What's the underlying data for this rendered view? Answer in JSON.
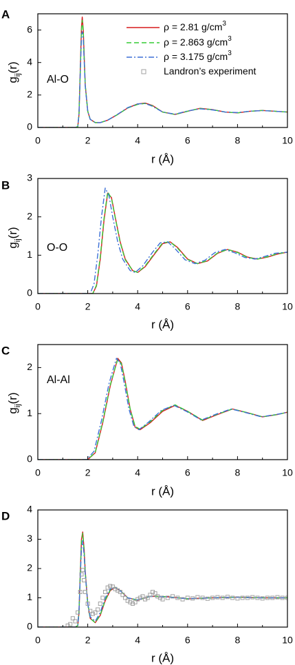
{
  "colors": {
    "s281": "#d7191c",
    "s2863": "#33cc33",
    "s3175": "#3b6fd6",
    "exp": "#a0a0a0"
  },
  "legend": {
    "entries": [
      {
        "pre": "ρ = 2.81 g/cm",
        "sup": "3"
      },
      {
        "pre": "ρ = 2.863 g/cm",
        "sup": "3"
      },
      {
        "pre": "ρ = 3.175 g/cm",
        "sup": "3"
      },
      {
        "pre": "Landron’s experiment",
        "sup": ""
      }
    ]
  },
  "chart_data": [
    {
      "panel": "A",
      "label": "Al-O",
      "type": "line",
      "xlabel": "r (Å)",
      "ylabel_main": "g",
      "ylabel_sub": "ij",
      "ylabel_tail": "(r)",
      "xlim": [
        0,
        10
      ],
      "ylim": [
        0,
        7
      ],
      "xticks": [
        0,
        2,
        4,
        6,
        8,
        10
      ],
      "yticks": [
        0,
        2,
        4,
        6
      ],
      "series": [
        {
          "name": "ρ = 2.81 g/cm³",
          "style": "solid",
          "x": [
            0,
            1.5,
            1.6,
            1.65,
            1.7,
            1.75,
            1.78,
            1.82,
            1.86,
            1.9,
            2.0,
            2.1,
            2.3,
            2.5,
            2.8,
            3.2,
            3.6,
            4.0,
            4.3,
            4.6,
            5.0,
            5.5,
            6.0,
            6.5,
            7.0,
            7.5,
            8.0,
            8.5,
            9.0,
            9.5,
            10
          ],
          "y": [
            0,
            0,
            0.05,
            0.8,
            3.5,
            6.2,
            6.8,
            6.0,
            4.3,
            2.6,
            1.0,
            0.5,
            0.3,
            0.3,
            0.45,
            0.8,
            1.2,
            1.45,
            1.5,
            1.35,
            0.95,
            0.8,
            1.0,
            1.18,
            1.1,
            0.95,
            0.9,
            1.0,
            1.05,
            1.0,
            0.95
          ]
        },
        {
          "name": "ρ = 2.863 g/cm³",
          "style": "dashed",
          "x": [
            0,
            1.5,
            1.6,
            1.65,
            1.7,
            1.75,
            1.78,
            1.82,
            1.86,
            1.9,
            2.0,
            2.1,
            2.3,
            2.5,
            2.8,
            3.2,
            3.6,
            4.0,
            4.3,
            4.6,
            5.0,
            5.5,
            6.0,
            6.5,
            7.0,
            7.5,
            8.0,
            8.5,
            9.0,
            9.5,
            10
          ],
          "y": [
            0,
            0,
            0.05,
            0.8,
            3.4,
            6.0,
            6.6,
            5.9,
            4.2,
            2.6,
            1.0,
            0.5,
            0.3,
            0.3,
            0.45,
            0.8,
            1.2,
            1.42,
            1.48,
            1.33,
            0.95,
            0.8,
            1.0,
            1.17,
            1.1,
            0.95,
            0.9,
            1.0,
            1.05,
            1.0,
            0.95
          ]
        },
        {
          "name": "ρ = 3.175 g/cm³",
          "style": "dashdot",
          "x": [
            0,
            1.5,
            1.6,
            1.65,
            1.7,
            1.75,
            1.78,
            1.82,
            1.86,
            1.9,
            2.0,
            2.1,
            2.3,
            2.5,
            2.8,
            3.2,
            3.6,
            4.0,
            4.3,
            4.6,
            5.0,
            5.5,
            6.0,
            6.5,
            7.0,
            7.5,
            8.0,
            8.5,
            9.0,
            9.5,
            10
          ],
          "y": [
            0,
            0,
            0.05,
            0.9,
            3.3,
            5.6,
            5.9,
            5.4,
            4.0,
            2.5,
            1.0,
            0.5,
            0.3,
            0.3,
            0.45,
            0.82,
            1.22,
            1.45,
            1.48,
            1.3,
            0.95,
            0.82,
            1.02,
            1.15,
            1.08,
            0.95,
            0.92,
            1.0,
            1.04,
            1.0,
            0.95
          ]
        }
      ]
    },
    {
      "panel": "B",
      "label": "O-O",
      "type": "line",
      "xlabel": "r (Å)",
      "ylabel_main": "g",
      "ylabel_sub": "ij",
      "ylabel_tail": "(r)",
      "xlim": [
        0,
        10
      ],
      "ylim": [
        0,
        3
      ],
      "xticks": [
        0,
        2,
        4,
        6,
        8,
        10
      ],
      "yticks": [
        0,
        1,
        2,
        3
      ],
      "series": [
        {
          "name": "ρ = 2.81 g/cm³",
          "style": "solid",
          "x": [
            0,
            2.2,
            2.35,
            2.5,
            2.65,
            2.8,
            2.95,
            3.1,
            3.3,
            3.5,
            3.8,
            4.0,
            4.3,
            4.7,
            5.0,
            5.3,
            5.6,
            6.0,
            6.4,
            6.8,
            7.2,
            7.6,
            8.0,
            8.4,
            8.8,
            9.2,
            9.6,
            10
          ],
          "y": [
            0,
            0,
            0.2,
            0.9,
            1.9,
            2.62,
            2.5,
            2.0,
            1.35,
            0.9,
            0.6,
            0.55,
            0.7,
            1.05,
            1.3,
            1.35,
            1.2,
            0.9,
            0.78,
            0.85,
            1.05,
            1.15,
            1.08,
            0.95,
            0.9,
            0.95,
            1.03,
            1.08
          ]
        },
        {
          "name": "ρ = 2.863 g/cm³",
          "style": "dashed",
          "x": [
            0,
            2.2,
            2.35,
            2.5,
            2.65,
            2.8,
            2.95,
            3.1,
            3.3,
            3.5,
            3.8,
            4.0,
            4.3,
            4.7,
            5.0,
            5.3,
            5.6,
            6.0,
            6.4,
            6.8,
            7.2,
            7.6,
            8.0,
            8.4,
            8.8,
            9.2,
            9.6,
            10
          ],
          "y": [
            0,
            0,
            0.22,
            0.95,
            1.95,
            2.65,
            2.48,
            1.98,
            1.33,
            0.88,
            0.6,
            0.55,
            0.72,
            1.07,
            1.32,
            1.35,
            1.18,
            0.89,
            0.78,
            0.86,
            1.06,
            1.15,
            1.07,
            0.94,
            0.9,
            0.96,
            1.04,
            1.08
          ]
        },
        {
          "name": "ρ = 3.175 g/cm³",
          "style": "dashdot",
          "x": [
            0,
            2.1,
            2.25,
            2.4,
            2.55,
            2.7,
            2.85,
            3.0,
            3.2,
            3.4,
            3.7,
            3.9,
            4.2,
            4.6,
            4.9,
            5.2,
            5.5,
            5.9,
            6.3,
            6.7,
            7.1,
            7.5,
            7.9,
            8.3,
            8.7,
            9.1,
            9.5,
            10
          ],
          "y": [
            0,
            0,
            0.25,
            1.0,
            2.0,
            2.75,
            2.55,
            2.0,
            1.35,
            0.9,
            0.6,
            0.55,
            0.72,
            1.08,
            1.32,
            1.35,
            1.17,
            0.88,
            0.78,
            0.87,
            1.07,
            1.15,
            1.06,
            0.94,
            0.9,
            0.97,
            1.05,
            1.08
          ]
        }
      ]
    },
    {
      "panel": "C",
      "label": "Al-Al",
      "type": "line",
      "xlabel": "r (Å)",
      "ylabel_main": "g",
      "ylabel_sub": "ij",
      "ylabel_tail": "(r)",
      "xlim": [
        0,
        10
      ],
      "ylim": [
        0,
        2.5
      ],
      "xticks": [
        0,
        2,
        4,
        6,
        8,
        10
      ],
      "yticks": [
        0,
        1,
        2
      ],
      "series": [
        {
          "name": "ρ = 2.81 g/cm³",
          "style": "solid",
          "x": [
            0,
            2.0,
            2.3,
            2.6,
            2.9,
            3.2,
            3.35,
            3.5,
            3.7,
            3.9,
            4.1,
            4.5,
            5.0,
            5.5,
            6.0,
            6.6,
            7.2,
            7.8,
            8.4,
            9.0,
            9.6,
            10
          ],
          "y": [
            0,
            0,
            0.15,
            0.8,
            1.6,
            2.2,
            2.1,
            1.7,
            1.1,
            0.7,
            0.65,
            0.8,
            1.05,
            1.18,
            1.05,
            0.85,
            0.98,
            1.1,
            1.02,
            0.93,
            0.98,
            1.03
          ]
        },
        {
          "name": "ρ = 2.863 g/cm³",
          "style": "dashed",
          "x": [
            0,
            2.0,
            2.3,
            2.6,
            2.9,
            3.2,
            3.35,
            3.5,
            3.7,
            3.9,
            4.1,
            4.5,
            5.0,
            5.5,
            6.0,
            6.6,
            7.2,
            7.8,
            8.4,
            9.0,
            9.6,
            10
          ],
          "y": [
            0,
            0,
            0.16,
            0.82,
            1.62,
            2.18,
            2.08,
            1.68,
            1.1,
            0.72,
            0.66,
            0.82,
            1.07,
            1.19,
            1.05,
            0.86,
            0.99,
            1.1,
            1.02,
            0.93,
            0.98,
            1.03
          ]
        },
        {
          "name": "ρ = 3.175 g/cm³",
          "style": "dashdot",
          "x": [
            0,
            1.95,
            2.25,
            2.55,
            2.85,
            3.15,
            3.3,
            3.45,
            3.65,
            3.85,
            4.05,
            4.45,
            4.95,
            5.45,
            5.95,
            6.55,
            7.15,
            7.75,
            8.35,
            8.95,
            9.55,
            10
          ],
          "y": [
            0,
            0,
            0.18,
            0.85,
            1.65,
            2.2,
            2.1,
            1.7,
            1.1,
            0.72,
            0.65,
            0.82,
            1.07,
            1.18,
            1.05,
            0.86,
            0.99,
            1.1,
            1.02,
            0.93,
            0.98,
            1.03
          ]
        }
      ]
    },
    {
      "panel": "D",
      "label": "",
      "type": "line",
      "xlabel": "r (Å)",
      "ylabel_main": "",
      "ylabel_sub": "",
      "ylabel_tail": "",
      "xlim": [
        0,
        10
      ],
      "ylim": [
        0,
        4
      ],
      "xticks": [
        0,
        2,
        4,
        6,
        8,
        10
      ],
      "yticks": [
        0,
        1,
        2,
        3,
        4
      ],
      "series": [
        {
          "name": "ρ = 2.81 g/cm³",
          "style": "solid",
          "x": [
            0,
            1.5,
            1.6,
            1.65,
            1.7,
            1.75,
            1.8,
            1.85,
            1.9,
            2.0,
            2.1,
            2.3,
            2.5,
            2.7,
            2.9,
            3.1,
            3.3,
            3.6,
            4.0,
            4.5,
            5.0,
            6.0,
            7.0,
            8.0,
            9.0,
            10
          ],
          "y": [
            0,
            0,
            0.05,
            0.5,
            1.8,
            3.0,
            3.25,
            2.7,
            1.9,
            0.8,
            0.3,
            0.15,
            0.4,
            0.9,
            1.25,
            1.35,
            1.25,
            1.0,
            0.92,
            1.05,
            1.05,
            0.97,
            1.0,
            1.02,
            1.0,
            1.0
          ]
        },
        {
          "name": "ρ = 2.863 g/cm³",
          "style": "dashed",
          "x": [
            0,
            1.5,
            1.6,
            1.65,
            1.7,
            1.75,
            1.8,
            1.85,
            1.9,
            2.0,
            2.1,
            2.3,
            2.5,
            2.7,
            2.9,
            3.1,
            3.3,
            3.6,
            4.0,
            4.5,
            5.0,
            6.0,
            7.0,
            8.0,
            9.0,
            10
          ],
          "y": [
            0,
            0,
            0.05,
            0.5,
            1.8,
            2.95,
            3.2,
            2.65,
            1.85,
            0.8,
            0.3,
            0.15,
            0.42,
            0.92,
            1.27,
            1.36,
            1.25,
            1.0,
            0.92,
            1.05,
            1.05,
            0.97,
            1.0,
            1.02,
            1.0,
            1.0
          ]
        },
        {
          "name": "ρ = 3.175 g/cm³",
          "style": "dashdot",
          "x": [
            0,
            1.5,
            1.6,
            1.65,
            1.7,
            1.75,
            1.8,
            1.85,
            1.9,
            2.0,
            2.1,
            2.3,
            2.5,
            2.7,
            2.9,
            3.1,
            3.3,
            3.6,
            4.0,
            4.5,
            5.0,
            6.0,
            7.0,
            8.0,
            9.0,
            10
          ],
          "y": [
            0,
            0,
            0.05,
            0.6,
            1.7,
            2.7,
            2.95,
            2.5,
            1.8,
            0.8,
            0.35,
            0.2,
            0.5,
            1.0,
            1.3,
            1.36,
            1.24,
            1.0,
            0.93,
            1.05,
            1.04,
            0.97,
            1.0,
            1.02,
            1.0,
            1.0
          ]
        },
        {
          "name": "Landron’s experiment",
          "style": "markers",
          "x": [
            1.2,
            1.3,
            1.4,
            1.5,
            1.6,
            1.7,
            1.75,
            1.8,
            1.85,
            1.9,
            2.0,
            2.1,
            2.2,
            2.3,
            2.4,
            2.5,
            2.6,
            2.7,
            2.8,
            2.9,
            3.0,
            3.1,
            3.2,
            3.3,
            3.4,
            3.5,
            3.6,
            3.7,
            3.8,
            3.9,
            4.0,
            4.1,
            4.2,
            4.3,
            4.4,
            4.5,
            4.6,
            4.7,
            4.8,
            4.9,
            5.0,
            5.2,
            5.4,
            5.6,
            5.8,
            6.0,
            6.2,
            6.4,
            6.6,
            6.8,
            7.0,
            7.2,
            7.4,
            7.6,
            7.8,
            8.0,
            8.2,
            8.4,
            8.6,
            8.8,
            9.0,
            9.2,
            9.4,
            9.6,
            9.8,
            10.0
          ],
          "y": [
            0.05,
            0.1,
            0.3,
            0.2,
            0.5,
            1.2,
            1.8,
            1.95,
            1.6,
            1.2,
            0.8,
            0.55,
            0.45,
            0.5,
            0.6,
            0.8,
            1.0,
            1.2,
            1.35,
            1.4,
            1.38,
            1.3,
            1.25,
            1.2,
            1.1,
            1.0,
            0.9,
            0.85,
            0.8,
            0.85,
            0.95,
            1.0,
            1.05,
            0.95,
            1.0,
            1.1,
            1.2,
            1.15,
            1.05,
            1.0,
            0.95,
            1.0,
            1.05,
            1.0,
            0.95,
            1.0,
            0.98,
            1.02,
            1.0,
            0.97,
            1.0,
            1.02,
            1.0,
            1.03,
            1.0,
            0.98,
            1.0,
            1.0,
            1.02,
            1.0,
            0.98,
            1.0,
            1.0,
            1.02,
            1.0,
            1.0
          ]
        }
      ]
    }
  ]
}
